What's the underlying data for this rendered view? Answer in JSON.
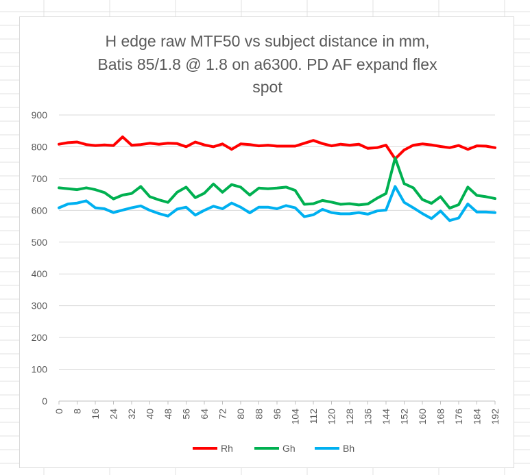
{
  "chart_data": {
    "type": "line",
    "title_lines": [
      "H edge raw MTF50 vs subject distance in mm,",
      "Batis 85/1.8 @ 1.8 on a6300. PD AF expand flex",
      "spot"
    ],
    "xlabel": "",
    "ylabel": "",
    "ylim": [
      0,
      900
    ],
    "y_ticks": [
      0,
      100,
      200,
      300,
      400,
      500,
      600,
      700,
      800,
      900
    ],
    "x": [
      0,
      4,
      8,
      12,
      16,
      20,
      24,
      28,
      32,
      36,
      40,
      44,
      48,
      52,
      56,
      60,
      64,
      68,
      72,
      76,
      80,
      84,
      88,
      92,
      96,
      100,
      104,
      108,
      112,
      116,
      120,
      124,
      128,
      132,
      136,
      140,
      144,
      148,
      152,
      156,
      160,
      164,
      168,
      172,
      176,
      180,
      184,
      188,
      192
    ],
    "x_tick_labels": [
      "0",
      "8",
      "16",
      "24",
      "32",
      "40",
      "48",
      "56",
      "64",
      "72",
      "80",
      "88",
      "96",
      "104",
      "112",
      "120",
      "128",
      "136",
      "144",
      "152",
      "160",
      "168",
      "176",
      "184",
      "192"
    ],
    "grid": true,
    "legend_position": "bottom",
    "series": [
      {
        "name": "Rh",
        "color": "#ff0000",
        "values": [
          808,
          813,
          815,
          807,
          804,
          806,
          804,
          831,
          805,
          807,
          811,
          808,
          811,
          810,
          800,
          815,
          806,
          800,
          809,
          792,
          809,
          807,
          803,
          805,
          802,
          802,
          802,
          811,
          820,
          810,
          803,
          808,
          805,
          808,
          795,
          797,
          805,
          762,
          790,
          805,
          809,
          806,
          801,
          797,
          804,
          792,
          803,
          802,
          797
        ]
      },
      {
        "name": "Gh",
        "color": "#00b050",
        "values": [
          671,
          668,
          665,
          671,
          665,
          656,
          636,
          648,
          653,
          675,
          643,
          633,
          625,
          657,
          673,
          640,
          654,
          683,
          657,
          681,
          673,
          648,
          670,
          668,
          670,
          673,
          663,
          619,
          621,
          631,
          626,
          619,
          621,
          617,
          620,
          638,
          653,
          765,
          684,
          671,
          634,
          622,
          643,
          607,
          618,
          673,
          647,
          643,
          637
        ]
      },
      {
        "name": "Bh",
        "color": "#00b0f0",
        "values": [
          608,
          620,
          623,
          630,
          608,
          605,
          593,
          601,
          608,
          614,
          600,
          590,
          582,
          604,
          610,
          585,
          600,
          613,
          605,
          623,
          610,
          592,
          610,
          610,
          605,
          615,
          608,
          580,
          586,
          603,
          593,
          589,
          589,
          593,
          588,
          598,
          601,
          675,
          625,
          608,
          590,
          574,
          598,
          568,
          576,
          620,
          595,
          595,
          593
        ]
      }
    ]
  }
}
